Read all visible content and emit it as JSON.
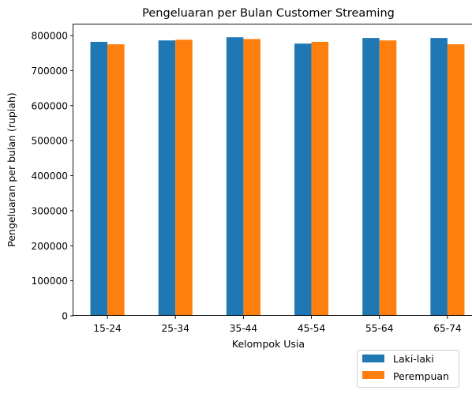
{
  "chart_data": {
    "type": "bar",
    "title": "Pengeluaran per Bulan Customer Streaming",
    "xlabel": "Kelompok Usia",
    "ylabel": "Pengeluaran per bulan (rupiah)",
    "categories": [
      "15-24",
      "25-34",
      "35-44",
      "45-54",
      "55-64",
      "65-74"
    ],
    "series": [
      {
        "name": "Laki-laki",
        "color": "#1f77b4",
        "values": [
          782000,
          786000,
          795000,
          777000,
          793000,
          793000
        ]
      },
      {
        "name": "Perempuan",
        "color": "#ff7f0e",
        "values": [
          775000,
          788000,
          790000,
          782000,
          786000,
          775000
        ]
      }
    ],
    "ylim": [
      0,
      800000
    ],
    "yticks": [
      "0",
      "100000",
      "200000",
      "300000",
      "400000",
      "500000",
      "600000",
      "700000",
      "800000"
    ],
    "grid": false,
    "legend_position": "bottom-right, outside below plot"
  }
}
